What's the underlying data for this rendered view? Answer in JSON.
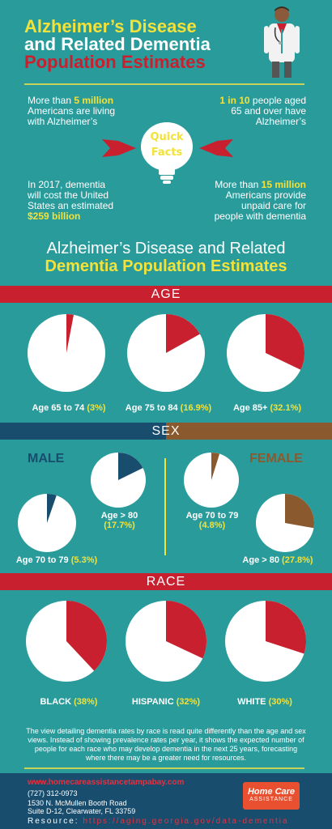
{
  "header": {
    "title_line1": "Alzheimer’s Disease",
    "title_line2": "and Related Dementia",
    "title_line3": "Population Estimates"
  },
  "quick_facts": {
    "label_line1": "Quick",
    "label_line2": "Facts",
    "fact1_pre": "More than ",
    "fact1_hl": "5 million",
    "fact1_rest1": "Americans are living",
    "fact1_rest2": "with Alzheimer’s",
    "fact2_hl": "1 in 10",
    "fact2_rest0": " people aged",
    "fact2_rest1": "65 and over have",
    "fact2_rest2": "Alzheimer’s",
    "fact3_line1": "In 2017, dementia",
    "fact3_line2": "will cost the United",
    "fact3_line3": "States an estimated",
    "fact3_hl": "$259 billion",
    "fact4_pre": "More than ",
    "fact4_hl": "15 million",
    "fact4_line2": "Americans provide",
    "fact4_line3": "unpaid care for",
    "fact4_line4": "people with dementia"
  },
  "section": {
    "title_line1": "Alzheimer’s Disease and Related",
    "title_line2": "Dementia Population Estimates"
  },
  "bands": {
    "age": "AGE",
    "sex": "SEX",
    "race": "RACE"
  },
  "sex": {
    "male": "MALE",
    "female": "FEMALE"
  },
  "chart_data": [
    {
      "type": "pie",
      "title": "AGE",
      "categories": [
        "Age 65 to 74",
        "Age 75 to 84",
        "Age 85+"
      ],
      "values": [
        3,
        16.9,
        32.1
      ],
      "unit": "%"
    },
    {
      "type": "pie",
      "title": "SEX",
      "categories": [
        "Age 70 to 79",
        "Age > 80",
        "Age 70 to 79",
        "Age > 80"
      ],
      "groups": [
        "MALE",
        "MALE",
        "FEMALE",
        "FEMALE"
      ],
      "values": [
        5.3,
        17.7,
        4.8,
        27.8
      ],
      "unit": "%"
    },
    {
      "type": "pie",
      "title": "RACE",
      "categories": [
        "BLACK",
        "HISPANIC",
        "WHITE"
      ],
      "values": [
        38,
        32,
        30
      ],
      "unit": "%"
    }
  ],
  "labels": {
    "age1": "Age 65 to 74",
    "age1_val": "(3%)",
    "age2": "Age 75 to 84",
    "age2_val": "(16.9%)",
    "age3": "Age 85+",
    "age3_val": "(32.1%)",
    "m_small": "Age 70 to 79",
    "m_small_val": "(5.3%)",
    "m_big": "Age > 80",
    "m_big_val": "(17.7%)",
    "f_small": "Age 70 to 79",
    "f_small_val": "(4.8%)",
    "f_big": "Age > 80",
    "f_big_val": "(27.8%)",
    "race1": "BLACK",
    "race1_val": "(38%)",
    "race2": "HISPANIC",
    "race2_val": "(32%)",
    "race3": "WHITE",
    "race3_val": "(30%)"
  },
  "note": "The view detailing dementia rates by race is read quite differently than the age and sex views. Instead of showing prevalence rates per year, it shows the expected number of people for each race who may develop dementia in the next 25 years, forecasting where there may be a greater need for resources.",
  "footer": {
    "url": "www.homecareassistancetampabay.com",
    "phone": "(727) 312-0973",
    "address1": "1530 N. McMullen Booth Road",
    "address2": "Suite D-12, Clearwater, FL 33759",
    "resource_label": "Resource:",
    "resource_url": "https://aging.georgia.gov/data-dementia",
    "logo_line1": "Home Care",
    "logo_line2": "ASSISTANCE"
  },
  "colors": {
    "teal": "#2a9b9b",
    "red": "#c8202f",
    "navy": "#184d6e",
    "brown": "#8a5a2e",
    "yellow": "#f2e23a"
  },
  "icons": {
    "doctor": "doctor-icon",
    "bulb": "lightbulb-icon",
    "ribbon": "ribbon-icon"
  }
}
